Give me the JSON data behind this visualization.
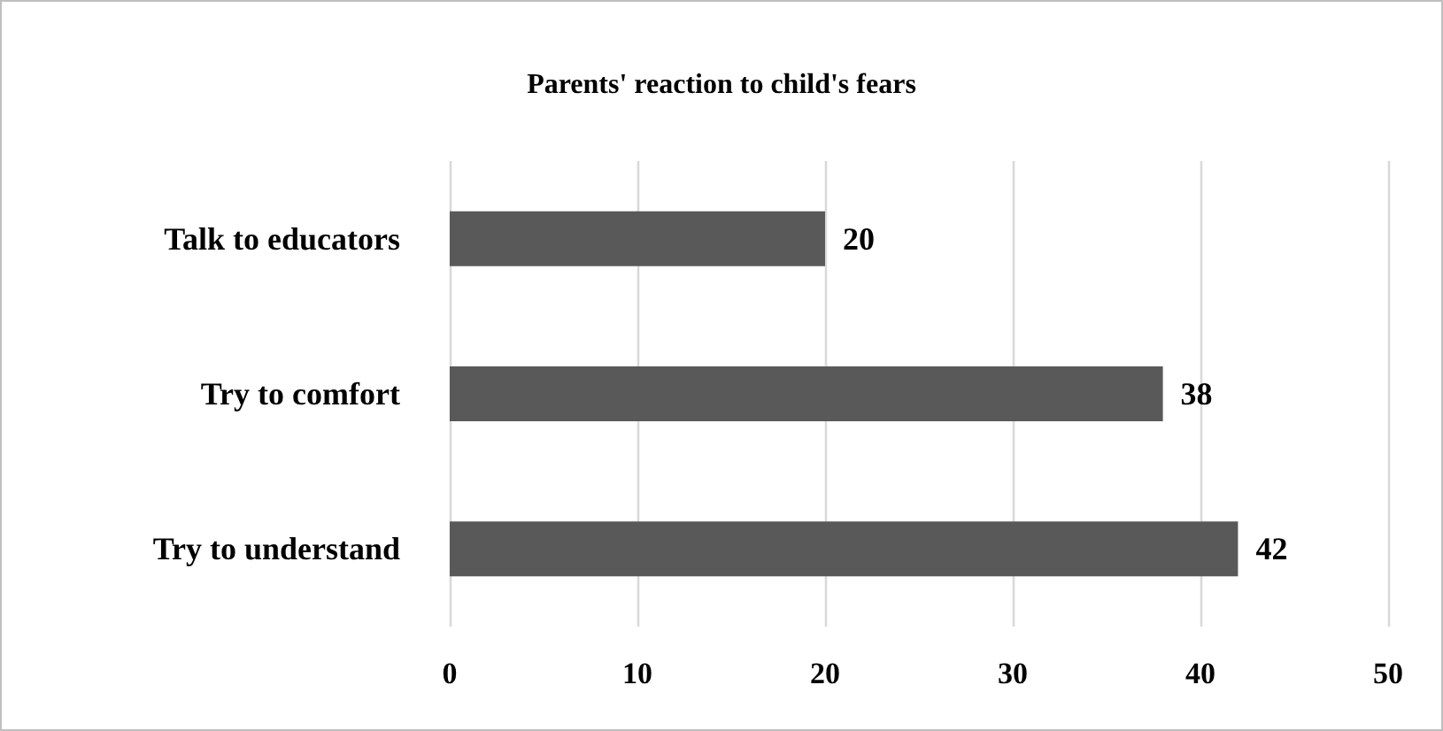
{
  "chart_data": {
    "type": "bar",
    "orientation": "horizontal",
    "title": "Parents' reaction to child's fears",
    "categories": [
      "Talk to educators",
      "Try to comfort",
      "Try to understand"
    ],
    "values": [
      20,
      38,
      42
    ],
    "color": "#595959",
    "xlim": [
      0,
      50
    ],
    "xticks": [
      0,
      10,
      20,
      30,
      40,
      50
    ],
    "grid": "x",
    "data_labels": true
  }
}
